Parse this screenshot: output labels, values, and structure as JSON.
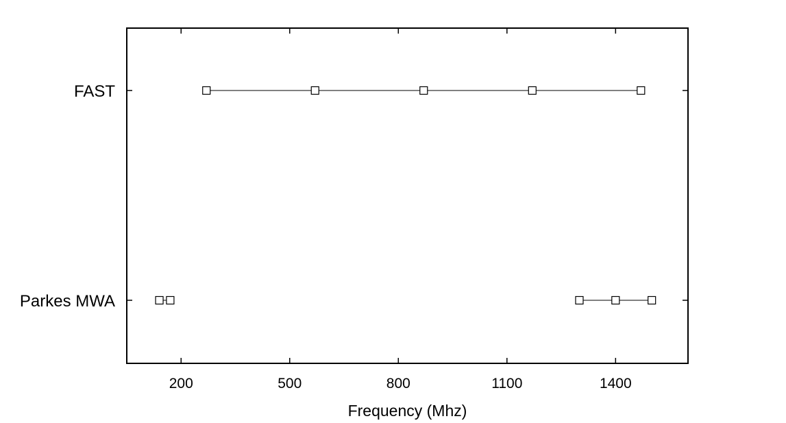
{
  "chart_data": {
    "type": "scatter",
    "title": "",
    "xlabel": "Frequency (Mhz)",
    "ylabel": "",
    "xlim": [
      50,
      1600
    ],
    "xticks": [
      200,
      500,
      800,
      1100,
      1400
    ],
    "xtick_labels": [
      "200",
      "500",
      "800",
      "1100",
      "1400"
    ],
    "categories": [
      "FAST",
      "Parkes MWA"
    ],
    "grid": false,
    "legend": "none",
    "marker": "open-square",
    "line_color": "#000000",
    "series": [
      {
        "category": "FAST",
        "segments": [
          [
            270,
            570,
            870,
            1170,
            1470
          ]
        ]
      },
      {
        "category": "Parkes MWA",
        "segments": [
          [
            140,
            170
          ],
          [
            1300,
            1400,
            1500
          ]
        ]
      }
    ]
  }
}
